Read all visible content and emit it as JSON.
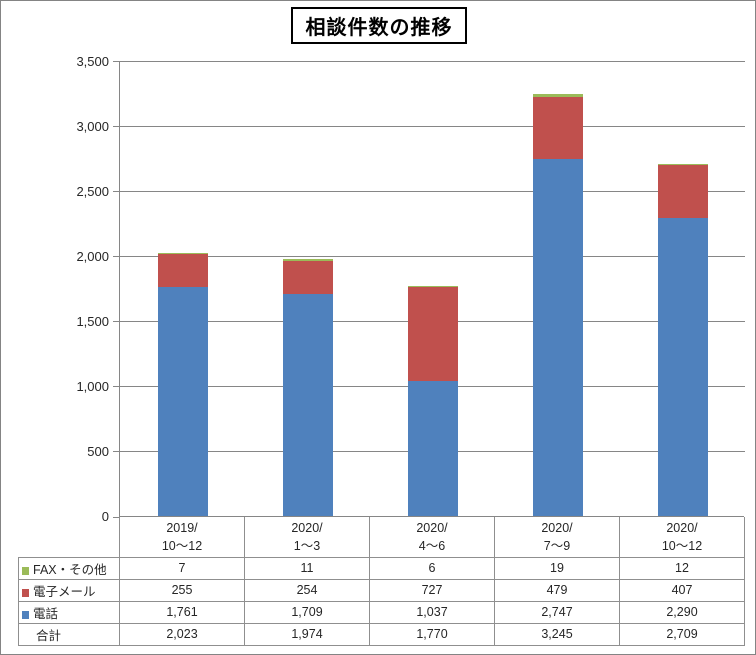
{
  "chart_data": {
    "type": "bar",
    "stacked": true,
    "title": "相談件数の推移",
    "categories": [
      "2019/\n10～12",
      "2020/\n1～3",
      "2020/\n4～6",
      "2020/\n7～9",
      "2020/\n10～12"
    ],
    "series": [
      {
        "name": "電話",
        "color": "#4F81BD",
        "values": [
          1761,
          1709,
          1037,
          2747,
          2290
        ]
      },
      {
        "name": "電子メール",
        "color": "#C0504D",
        "values": [
          255,
          254,
          727,
          479,
          407
        ]
      },
      {
        "name": "FAX・その他",
        "color": "#9BBB59",
        "values": [
          7,
          11,
          6,
          19,
          12
        ]
      }
    ],
    "table_display_order": [
      "FAX・その他",
      "電子メール",
      "電話"
    ],
    "totals_row": {
      "label": "合計",
      "values": [
        2023,
        1974,
        1770,
        3245,
        2709
      ]
    },
    "xlabel": "",
    "ylabel": "",
    "ylim": [
      0,
      3500
    ],
    "ytick_step": 500,
    "grid": true,
    "legend_position": "data-table",
    "number_format": "thousands-comma"
  },
  "style": {
    "grid_color": "#868686",
    "axis_color": "#868686",
    "table_border_color": "#8f8f8f",
    "text_color": "#262626",
    "title_border_color": "#000000",
    "background": "#ffffff"
  }
}
